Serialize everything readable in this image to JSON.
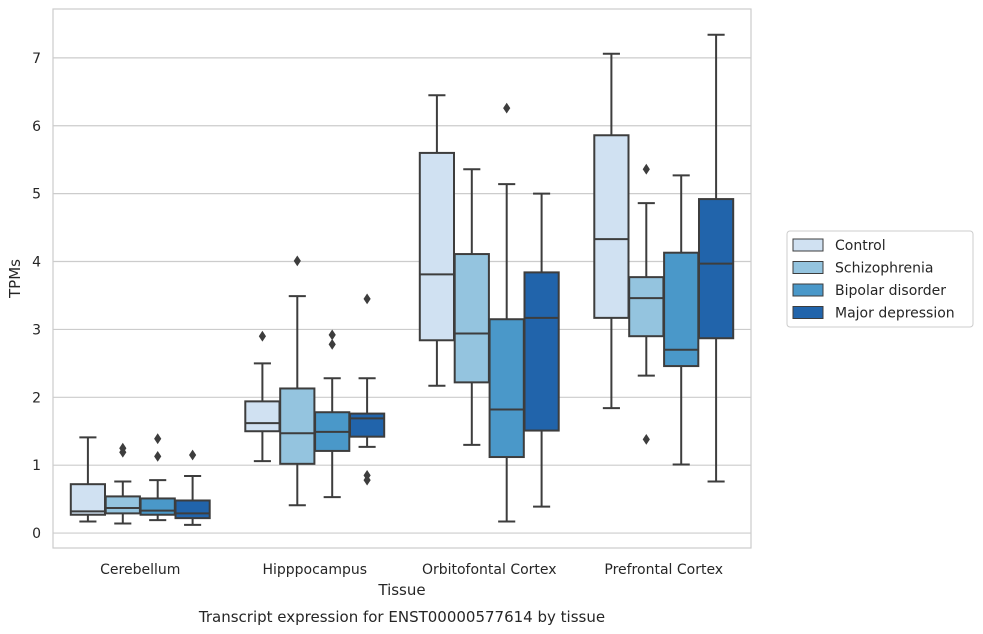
{
  "chart_data": {
    "type": "box",
    "caption": "Transcript expression for ENST00000577614 by tissue",
    "xlabel": "Tissue",
    "ylabel": "TPMs",
    "ylim": [
      -0.22,
      7.72
    ],
    "yticks": [
      "0",
      "1",
      "2",
      "3",
      "4",
      "5",
      "6",
      "7"
    ],
    "grid": "horizontal",
    "legend_position": "right",
    "categories": [
      "Cerebellum",
      "Hipppocampus",
      "Orbitofontal Cortex",
      "Prefrontal Cortex"
    ],
    "series": [
      {
        "name": "Control",
        "color": "#d0e1f2",
        "boxes": [
          {
            "whisker_low": 0.17,
            "q1": 0.27,
            "median": 0.32,
            "q3": 0.72,
            "whisker_high": 1.41,
            "outliers": []
          },
          {
            "whisker_low": 1.06,
            "q1": 1.5,
            "median": 1.62,
            "q3": 1.94,
            "whisker_high": 2.5,
            "outliers": [
              2.9
            ]
          },
          {
            "whisker_low": 2.17,
            "q1": 2.84,
            "median": 3.81,
            "q3": 5.6,
            "whisker_high": 6.45,
            "outliers": []
          },
          {
            "whisker_low": 1.84,
            "q1": 3.17,
            "median": 4.33,
            "q3": 5.86,
            "whisker_high": 7.06,
            "outliers": []
          }
        ]
      },
      {
        "name": "Schizophrenia",
        "color": "#94c4df",
        "boxes": [
          {
            "whisker_low": 0.14,
            "q1": 0.29,
            "median": 0.37,
            "q3": 0.54,
            "whisker_high": 0.76,
            "outliers": [
              1.19,
              1.25
            ]
          },
          {
            "whisker_low": 0.41,
            "q1": 1.02,
            "median": 1.47,
            "q3": 2.13,
            "whisker_high": 3.49,
            "outliers": [
              4.01
            ]
          },
          {
            "whisker_low": 1.3,
            "q1": 2.22,
            "median": 2.94,
            "q3": 4.11,
            "whisker_high": 5.36,
            "outliers": []
          },
          {
            "whisker_low": 2.32,
            "q1": 2.9,
            "median": 3.46,
            "q3": 3.77,
            "whisker_high": 4.86,
            "outliers": [
              5.36,
              1.38
            ]
          }
        ]
      },
      {
        "name": "Bipolar disorder",
        "color": "#4a98c9",
        "boxes": [
          {
            "whisker_low": 0.19,
            "q1": 0.27,
            "median": 0.33,
            "q3": 0.51,
            "whisker_high": 0.78,
            "outliers": [
              1.13,
              1.39
            ]
          },
          {
            "whisker_low": 0.53,
            "q1": 1.21,
            "median": 1.49,
            "q3": 1.78,
            "whisker_high": 2.28,
            "outliers": [
              2.78,
              2.92
            ]
          },
          {
            "whisker_low": 0.17,
            "q1": 1.12,
            "median": 1.82,
            "q3": 3.15,
            "whisker_high": 5.14,
            "outliers": [
              6.26
            ]
          },
          {
            "whisker_low": 1.01,
            "q1": 2.46,
            "median": 2.7,
            "q3": 4.13,
            "whisker_high": 5.27,
            "outliers": []
          }
        ]
      },
      {
        "name": "Major depression",
        "color": "#2164ab",
        "boxes": [
          {
            "whisker_low": 0.12,
            "q1": 0.22,
            "median": 0.29,
            "q3": 0.48,
            "whisker_high": 0.84,
            "outliers": [
              1.15
            ]
          },
          {
            "whisker_low": 1.27,
            "q1": 1.42,
            "median": 1.69,
            "q3": 1.76,
            "whisker_high": 2.28,
            "outliers": [
              3.45,
              0.85,
              0.78
            ]
          },
          {
            "whisker_low": 0.39,
            "q1": 1.51,
            "median": 3.17,
            "q3": 3.84,
            "whisker_high": 5.0,
            "outliers": []
          },
          {
            "whisker_low": 0.76,
            "q1": 2.87,
            "median": 3.97,
            "q3": 4.92,
            "whisker_high": 7.34,
            "outliers": []
          }
        ]
      }
    ]
  }
}
